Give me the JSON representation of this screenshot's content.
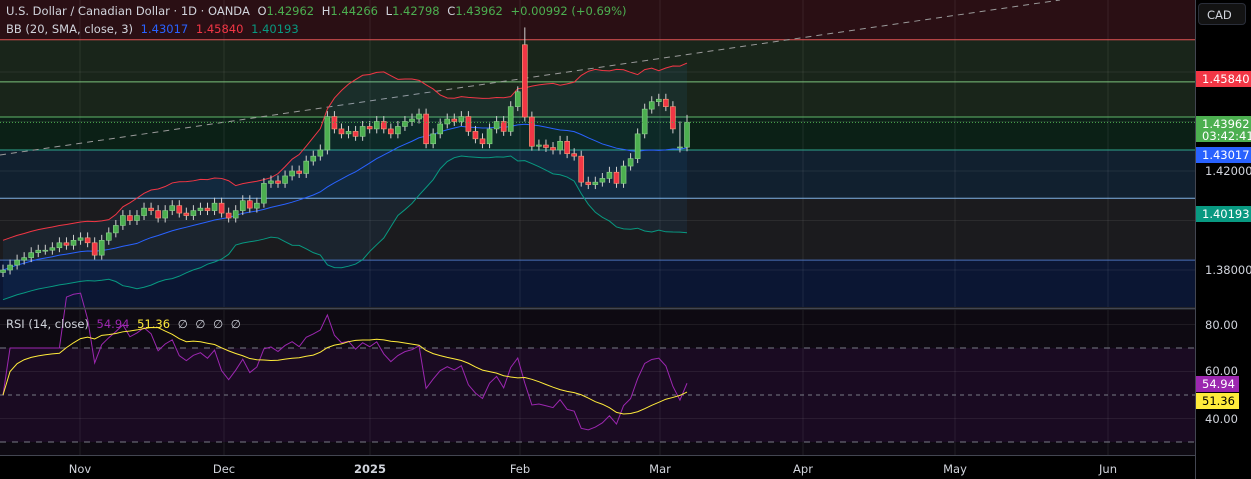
{
  "header": {
    "title": "U.S. Dollar / Canadian Dollar · 1D · OANDA",
    "o_label": "O",
    "o": "1.42962",
    "h_label": "H",
    "h": "1.44266",
    "l_label": "L",
    "l": "1.42798",
    "c_label": "C",
    "c": "1.43962",
    "change": "+0.00992 (+0.69%)"
  },
  "bb_legend": {
    "label": "BB (20, SMA, close, 3)",
    "basis": "1.43017",
    "upper": "1.45840",
    "lower": "1.40193"
  },
  "rsi_legend": {
    "label": "RSI (14, close)",
    "rsi": "54.94",
    "ma": "51.36",
    "extras": [
      "∅",
      "∅",
      "∅",
      "∅"
    ]
  },
  "currency": "CAD",
  "price_axis": {
    "ticks": [
      "1.42000",
      "1.38000"
    ],
    "badges": {
      "upper": "1.45840",
      "last": "1.43962",
      "countdown": "03:42:41",
      "basis": "1.43017",
      "lower": "1.40193"
    }
  },
  "rsi_axis": {
    "ticks": [
      "80.00",
      "60.00",
      "40.00"
    ],
    "rsi": "54.94",
    "ma": "51.36"
  },
  "time_axis": [
    "Nov",
    "Dec",
    "2025",
    "Feb",
    "Mar",
    "Apr",
    "May",
    "Jun"
  ],
  "colors": {
    "up": "#4caf50",
    "down": "#f23645",
    "basis": "#2962ff",
    "upper": "#f23645",
    "lower": "#089981",
    "rsi": "#9c27b0",
    "rsi_ma": "#ffeb3b"
  },
  "chart_data": {
    "type": "candlestick",
    "symbol": "USDCAD",
    "interval": "1D",
    "ylim": [
      1.3725,
      1.4925
    ],
    "horizontal_levels": [
      1.473,
      1.456,
      1.4418,
      1.4285,
      1.409,
      1.384
    ],
    "candles": [
      1.38,
      1.382,
      1.384,
      1.385,
      1.387,
      1.388,
      1.388,
      1.389,
      1.391,
      1.39,
      1.392,
      1.393,
      1.391,
      1.386,
      1.392,
      1.395,
      1.398,
      1.402,
      1.4,
      1.402,
      1.405,
      1.404,
      1.401,
      1.404,
      1.406,
      1.403,
      1.402,
      1.404,
      1.405,
      1.404,
      1.407,
      1.403,
      1.401,
      1.404,
      1.408,
      1.405,
      1.407,
      1.415,
      1.416,
      1.415,
      1.418,
      1.42,
      1.419,
      1.424,
      1.426,
      1.4285,
      1.442,
      1.437,
      1.435,
      1.436,
      1.434,
      1.438,
      1.437,
      1.44,
      1.437,
      1.435,
      1.438,
      1.44,
      1.441,
      1.443,
      1.431,
      1.435,
      1.439,
      1.441,
      1.44,
      1.442,
      1.436,
      1.433,
      1.431,
      1.437,
      1.44,
      1.436,
      1.446,
      1.452,
      [
        1.471,
        1.478,
        1.44,
        1.4418
      ],
      1.43,
      1.4305,
      1.4295,
      1.4285,
      1.432,
      1.427,
      1.426,
      1.4155,
      1.4145,
      1.4155,
      1.417,
      1.4195,
      1.415,
      1.422,
      1.425,
      1.435,
      1.445,
      1.448,
      1.449,
      1.446,
      1.437,
      [
        1.4297,
        1.44,
        1.4275,
        1.4297
      ],
      [
        1.42962,
        1.44266,
        1.42798,
        1.43962
      ]
    ],
    "bollinger": {
      "length": 20,
      "stddev": 3
    },
    "rsi": {
      "length": 14,
      "levels": [
        70,
        50,
        30
      ],
      "ylim": [
        25,
        88
      ]
    }
  }
}
